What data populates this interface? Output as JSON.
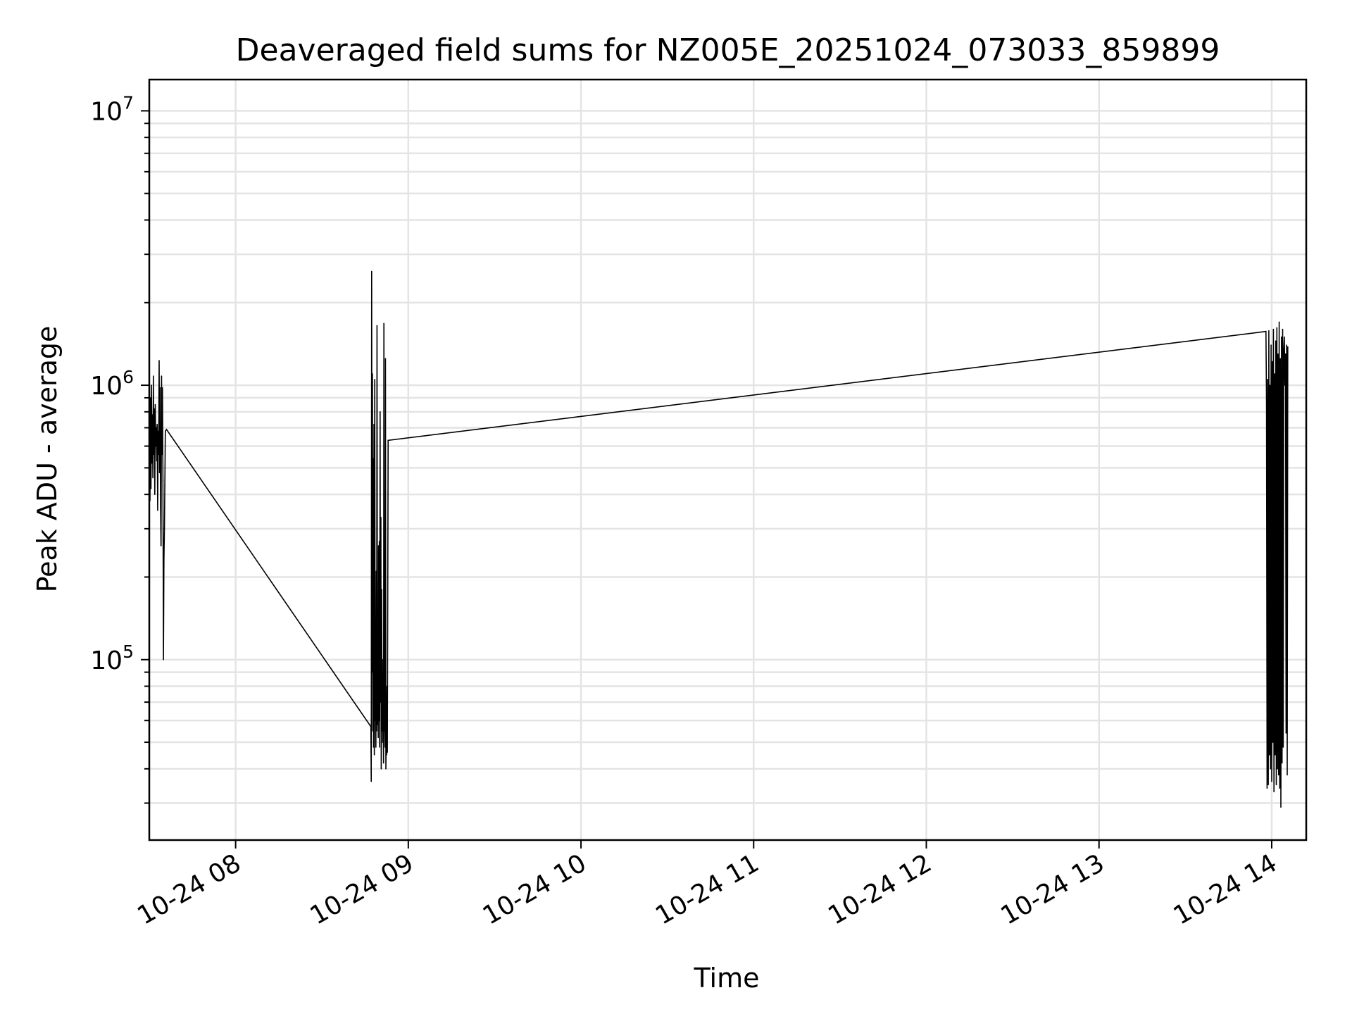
{
  "chart_data": {
    "type": "line",
    "title": "Deaveraged field sums for NZ005E_20251024_073033_859899",
    "xlabel": "Time",
    "ylabel": "Peak ADU - average",
    "yscale": "log",
    "ylim": [
      22000,
      13000000
    ],
    "xlim": [
      "2025-10-24 07:30",
      "2025-10-24 14:12"
    ],
    "grid": true,
    "x_ticks": [
      {
        "t": "2025-10-24 08:00",
        "label": "10-24 08"
      },
      {
        "t": "2025-10-24 09:00",
        "label": "10-24 09"
      },
      {
        "t": "2025-10-24 10:00",
        "label": "10-24 10"
      },
      {
        "t": "2025-10-24 11:00",
        "label": "10-24 11"
      },
      {
        "t": "2025-10-24 12:00",
        "label": "10-24 12"
      },
      {
        "t": "2025-10-24 13:00",
        "label": "10-24 13"
      },
      {
        "t": "2025-10-24 14:00",
        "label": "10-24 14"
      }
    ],
    "y_ticks": [
      {
        "v": 100000,
        "base": "10",
        "exp": "5"
      },
      {
        "v": 1000000,
        "base": "10",
        "exp": "6"
      },
      {
        "v": 10000000,
        "base": "10",
        "exp": "7"
      }
    ],
    "series": [
      {
        "color": "#000000",
        "points": [
          [
            "2025-10-24 07:30:05",
            800000
          ],
          [
            "2025-10-24 07:30:15",
            380000
          ],
          [
            "2025-10-24 07:30:25",
            900000
          ],
          [
            "2025-10-24 07:30:35",
            420000
          ],
          [
            "2025-10-24 07:30:45",
            1000000
          ],
          [
            "2025-10-24 07:30:55",
            520000
          ],
          [
            "2025-10-24 07:31:05",
            780000
          ],
          [
            "2025-10-24 07:31:15",
            460000
          ],
          [
            "2025-10-24 07:31:25",
            1080000
          ],
          [
            "2025-10-24 07:31:35",
            560000
          ],
          [
            "2025-10-24 07:31:45",
            820000
          ],
          [
            "2025-10-24 07:31:55",
            400000
          ],
          [
            "2025-10-24 07:32:05",
            850000
          ],
          [
            "2025-10-24 07:32:15",
            600000
          ],
          [
            "2025-10-24 07:32:25",
            700000
          ],
          [
            "2025-10-24 07:32:35",
            530000
          ],
          [
            "2025-10-24 07:32:45",
            720000
          ],
          [
            "2025-10-24 07:32:55",
            350000
          ],
          [
            "2025-10-24 07:33:05",
            680000
          ],
          [
            "2025-10-24 07:33:15",
            560000
          ],
          [
            "2025-10-24 07:33:25",
            1230000
          ],
          [
            "2025-10-24 07:33:35",
            480000
          ],
          [
            "2025-10-24 07:33:45",
            980000
          ],
          [
            "2025-10-24 07:33:55",
            360000
          ],
          [
            "2025-10-24 07:34:05",
            260000
          ],
          [
            "2025-10-24 07:34:15",
            1080000
          ],
          [
            "2025-10-24 07:34:25",
            560000
          ],
          [
            "2025-10-24 07:34:35",
            980000
          ],
          [
            "2025-10-24 07:34:45",
            450000
          ],
          [
            "2025-10-24 07:34:55",
            100000
          ],
          [
            "2025-10-24 07:35:05",
            230000
          ],
          [
            "2025-10-24 07:35:15",
            300000
          ],
          [
            "2025-10-24 07:35:25",
            430000
          ],
          [
            "2025-10-24 07:35:35",
            680000
          ],
          [
            "2025-10-24 07:36:00",
            690000
          ],
          [
            "2025-10-24 08:47:00",
            57000
          ],
          [
            "2025-10-24 08:47:08",
            36000
          ],
          [
            "2025-10-24 08:47:16",
            2600000
          ],
          [
            "2025-10-24 08:47:24",
            90000
          ],
          [
            "2025-10-24 08:47:32",
            1100000
          ],
          [
            "2025-10-24 08:47:40",
            55000
          ],
          [
            "2025-10-24 08:47:48",
            540000
          ],
          [
            "2025-10-24 08:47:56",
            48000
          ],
          [
            "2025-10-24 08:48:04",
            720000
          ],
          [
            "2025-10-24 08:48:12",
            45000
          ],
          [
            "2025-10-24 08:48:20",
            1050000
          ],
          [
            "2025-10-24 08:48:28",
            60000
          ],
          [
            "2025-10-24 08:48:36",
            75000
          ],
          [
            "2025-10-24 08:48:44",
            48000
          ],
          [
            "2025-10-24 08:48:52",
            210000
          ],
          [
            "2025-10-24 08:49:00",
            55000
          ],
          [
            "2025-10-24 08:49:08",
            1650000
          ],
          [
            "2025-10-24 08:49:16",
            58000
          ],
          [
            "2025-10-24 08:49:24",
            140000
          ],
          [
            "2025-10-24 08:49:32",
            52000
          ],
          [
            "2025-10-24 08:49:40",
            260000
          ],
          [
            "2025-10-24 08:49:48",
            60000
          ],
          [
            "2025-10-24 08:49:56",
            270000
          ],
          [
            "2025-10-24 08:50:04",
            48000
          ],
          [
            "2025-10-24 08:50:12",
            800000
          ],
          [
            "2025-10-24 08:50:20",
            70000
          ],
          [
            "2025-10-24 08:50:28",
            330000
          ],
          [
            "2025-10-24 08:50:36",
            40000
          ],
          [
            "2025-10-24 08:50:44",
            180000
          ],
          [
            "2025-10-24 08:50:52",
            55000
          ],
          [
            "2025-10-24 08:51:00",
            100000
          ],
          [
            "2025-10-24 08:51:08",
            50000
          ],
          [
            "2025-10-24 08:51:16",
            75000
          ],
          [
            "2025-10-24 08:51:24",
            42000
          ],
          [
            "2025-10-24 08:51:32",
            1680000
          ],
          [
            "2025-10-24 08:51:40",
            55000
          ],
          [
            "2025-10-24 08:51:48",
            60000
          ],
          [
            "2025-10-24 08:51:56",
            48000
          ],
          [
            "2025-10-24 08:52:04",
            1250000
          ],
          [
            "2025-10-24 08:52:12",
            40000
          ],
          [
            "2025-10-24 08:52:20",
            55000
          ],
          [
            "2025-10-24 08:52:28",
            45000
          ],
          [
            "2025-10-24 08:52:36",
            80000
          ],
          [
            "2025-10-24 08:52:44",
            46000
          ],
          [
            "2025-10-24 08:53:00",
            630000
          ],
          [
            "2025-10-24 13:58:00",
            1570000
          ],
          [
            "2025-10-24 13:58:12",
            860000
          ],
          [
            "2025-10-24 13:58:24",
            34000
          ],
          [
            "2025-10-24 13:58:36",
            1050000
          ],
          [
            "2025-10-24 13:58:48",
            35000
          ],
          [
            "2025-10-24 13:59:00",
            1580000
          ],
          [
            "2025-10-24 13:59:12",
            45000
          ],
          [
            "2025-10-24 13:59:24",
            1000000
          ],
          [
            "2025-10-24 13:59:36",
            40000
          ],
          [
            "2025-10-24 13:59:48",
            1400000
          ],
          [
            "2025-10-24 14:00:00",
            36000
          ],
          [
            "2025-10-24 14:00:12",
            1220000
          ],
          [
            "2025-10-24 14:00:24",
            50000
          ],
          [
            "2025-10-24 14:00:36",
            1600000
          ],
          [
            "2025-10-24 14:00:48",
            33000
          ],
          [
            "2025-10-24 14:01:00",
            1100000
          ],
          [
            "2025-10-24 14:01:12",
            45000
          ],
          [
            "2025-10-24 14:01:24",
            1450000
          ],
          [
            "2025-10-24 14:01:36",
            35000
          ],
          [
            "2025-10-24 14:01:48",
            1620000
          ],
          [
            "2025-10-24 14:02:00",
            40000
          ],
          [
            "2025-10-24 14:02:12",
            1300000
          ],
          [
            "2025-10-24 14:02:24",
            38000
          ],
          [
            "2025-10-24 14:02:36",
            1700000
          ],
          [
            "2025-10-24 14:02:48",
            34000
          ],
          [
            "2025-10-24 14:03:00",
            1250000
          ],
          [
            "2025-10-24 14:03:12",
            29000
          ],
          [
            "2025-10-24 14:03:24",
            1500000
          ],
          [
            "2025-10-24 14:03:36",
            42000
          ],
          [
            "2025-10-24 14:03:48",
            1600000
          ],
          [
            "2025-10-24 14:04:00",
            48000
          ],
          [
            "2025-10-24 14:04:12",
            1350000
          ],
          [
            "2025-10-24 14:04:24",
            1500000
          ],
          [
            "2025-10-24 14:04:36",
            1000000
          ],
          [
            "2025-10-24 14:04:48",
            1300000
          ],
          [
            "2025-10-24 14:05:00",
            54000
          ],
          [
            "2025-10-24 14:05:12",
            1400000
          ],
          [
            "2025-10-24 14:05:24",
            38000
          ],
          [
            "2025-10-24 14:05:36",
            1380000
          ]
        ]
      }
    ]
  }
}
